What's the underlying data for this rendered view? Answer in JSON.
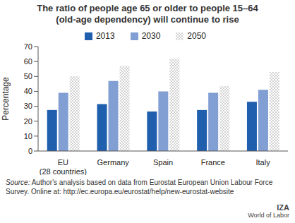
{
  "chart_data": {
    "type": "bar",
    "title": "The ratio of people age 65 or older to people 15–64\n(old-age dependency) will continue to rise",
    "y_label": "Percentage",
    "categories": [
      "EU\n(28 countries)",
      "Germany",
      "Spain",
      "France",
      "Italy"
    ],
    "series": [
      {
        "name": "2013",
        "color": "#1f5fad",
        "values": [
          27.5,
          31.5,
          26.5,
          27.5,
          33
        ]
      },
      {
        "name": "2030",
        "color": "#819fd3",
        "values": [
          39,
          47,
          40,
          39,
          41
        ]
      },
      {
        "name": "2050",
        "color": "#9a9a9a",
        "line_style": "dotted",
        "values": [
          50,
          57,
          62,
          43.5,
          53
        ]
      }
    ],
    "ylim": [
      0,
      70
    ],
    "yticks": [
      0,
      10,
      20,
      30,
      40,
      50,
      60,
      70
    ],
    "grid": false,
    "legend": "top",
    "source_label": "Source:",
    "source": "Author's analysis based on data from Eurostat European Union Labour Force Survey. Online at: http://ec.europa.eu/eurostat/help/new-eurostat-website",
    "logo": [
      "IZA",
      "World of Labor"
    ]
  }
}
